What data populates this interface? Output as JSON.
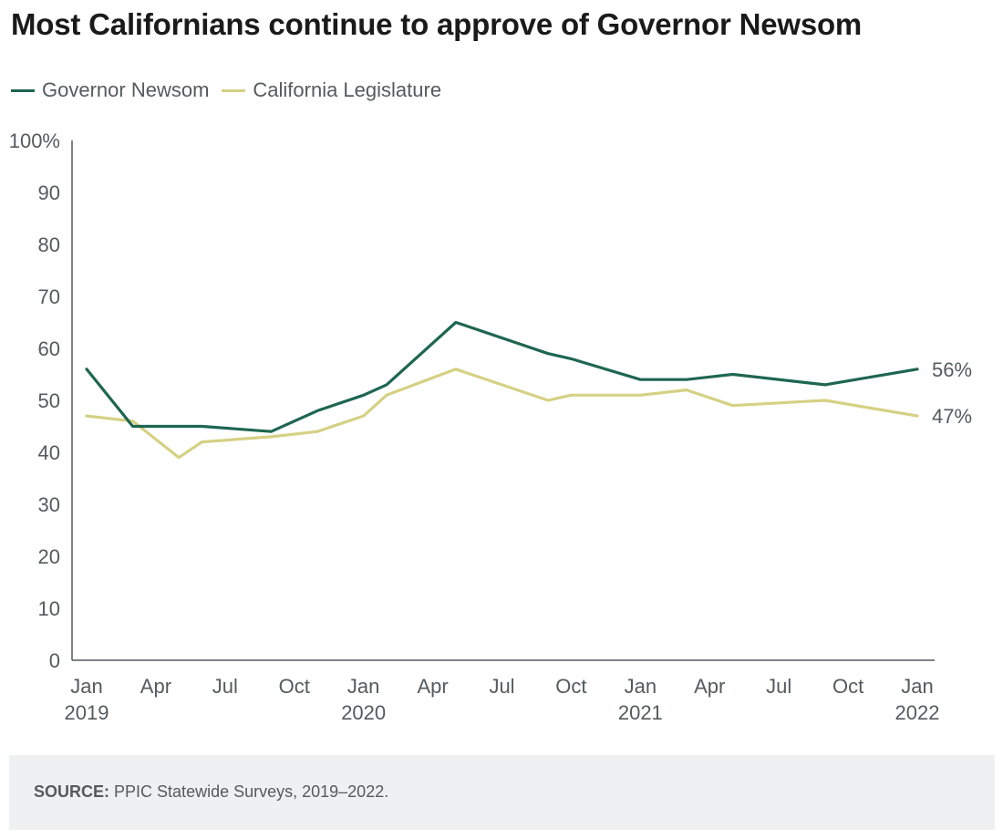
{
  "title": "Most Californians continue to approve of Governor Newsom",
  "source": {
    "label": "SOURCE:",
    "text": "PPIC Statewide Surveys, 2019–2022."
  },
  "colors": {
    "newsom": "#1e6650",
    "legislature": "#d5d184",
    "axis": "#555a5e",
    "tick_text": "#555a5e"
  },
  "chart_data": {
    "type": "line",
    "title": "Most Californians continue to approve of Governor Newsom",
    "xlabel": "",
    "ylabel": "",
    "ylim": [
      0,
      100
    ],
    "xlim": [
      "2019-01",
      "2022-01"
    ],
    "y_ticks": [
      "0",
      "10",
      "20",
      "30",
      "40",
      "50",
      "60",
      "70",
      "80",
      "90",
      "100%"
    ],
    "x_ticks": [
      {
        "x": "2019-01",
        "label": "Jan",
        "year": "2019"
      },
      {
        "x": "2019-04",
        "label": "Apr",
        "year": ""
      },
      {
        "x": "2019-07",
        "label": "Jul",
        "year": ""
      },
      {
        "x": "2019-10",
        "label": "Oct",
        "year": ""
      },
      {
        "x": "2020-01",
        "label": "Jan",
        "year": "2020"
      },
      {
        "x": "2020-04",
        "label": "Apr",
        "year": ""
      },
      {
        "x": "2020-07",
        "label": "Jul",
        "year": ""
      },
      {
        "x": "2020-10",
        "label": "Oct",
        "year": ""
      },
      {
        "x": "2021-01",
        "label": "Jan",
        "year": "2021"
      },
      {
        "x": "2021-04",
        "label": "Apr",
        "year": ""
      },
      {
        "x": "2021-07",
        "label": "Jul",
        "year": ""
      },
      {
        "x": "2021-10",
        "label": "Oct",
        "year": ""
      },
      {
        "x": "2022-01",
        "label": "Jan",
        "year": "2022"
      }
    ],
    "grid": false,
    "legend": "top-left",
    "series": [
      {
        "name": "Governor Newsom",
        "color": "#1e6650",
        "end_label": "56%",
        "points": [
          {
            "x": "2019-01",
            "y": 56
          },
          {
            "x": "2019-03",
            "y": 45
          },
          {
            "x": "2019-05",
            "y": 45
          },
          {
            "x": "2019-06",
            "y": 45
          },
          {
            "x": "2019-09",
            "y": 44
          },
          {
            "x": "2019-11",
            "y": 48
          },
          {
            "x": "2020-01",
            "y": 51
          },
          {
            "x": "2020-02",
            "y": 53
          },
          {
            "x": "2020-05",
            "y": 65
          },
          {
            "x": "2020-09",
            "y": 59
          },
          {
            "x": "2020-10",
            "y": 58
          },
          {
            "x": "2021-01",
            "y": 54
          },
          {
            "x": "2021-03",
            "y": 54
          },
          {
            "x": "2021-05",
            "y": 55
          },
          {
            "x": "2021-09",
            "y": 53
          },
          {
            "x": "2022-01",
            "y": 56
          }
        ]
      },
      {
        "name": "California Legislature",
        "color": "#d5d184",
        "end_label": "47%",
        "points": [
          {
            "x": "2019-01",
            "y": 47
          },
          {
            "x": "2019-03",
            "y": 46
          },
          {
            "x": "2019-05",
            "y": 39
          },
          {
            "x": "2019-06",
            "y": 42
          },
          {
            "x": "2019-09",
            "y": 43
          },
          {
            "x": "2019-11",
            "y": 44
          },
          {
            "x": "2020-01",
            "y": 47
          },
          {
            "x": "2020-02",
            "y": 51
          },
          {
            "x": "2020-05",
            "y": 56
          },
          {
            "x": "2020-09",
            "y": 50
          },
          {
            "x": "2020-10",
            "y": 51
          },
          {
            "x": "2021-01",
            "y": 51
          },
          {
            "x": "2021-03",
            "y": 52
          },
          {
            "x": "2021-05",
            "y": 49
          },
          {
            "x": "2021-09",
            "y": 50
          },
          {
            "x": "2022-01",
            "y": 47
          }
        ]
      }
    ]
  }
}
